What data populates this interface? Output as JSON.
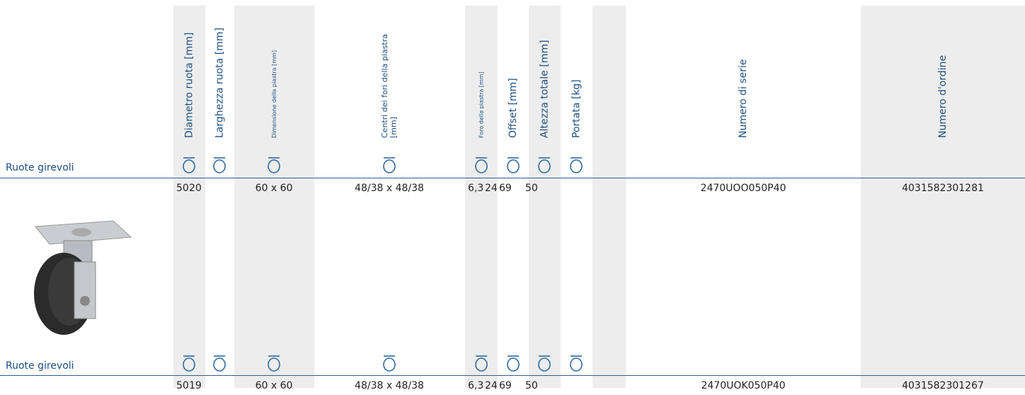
{
  "table": {
    "columns": [
      "Diametro ruota [mm]",
      "Larghezza ruota [mm]",
      "Dimensione della piastra [mm]",
      "Centri dei fori della piastra [mm]",
      "Foro della piastra [mm]",
      "Offset [mm]",
      "Altezza totale [mm]",
      "Portata [kg]",
      "Numero di serie",
      "Numero d'ordine"
    ],
    "rows": [
      {
        "section": "Ruote girevoli",
        "cells": [
          "50",
          "20",
          "60 x 60",
          "48/38 x 48/38",
          "6,3",
          "24",
          "69",
          "50",
          "2470UOO050P40",
          "4031582301281"
        ]
      },
      {
        "section": "Ruote girevoli",
        "cells": [
          "50",
          "19",
          "60 x 60",
          "48/38 x 48/38",
          "6,3",
          "24",
          "69",
          "50",
          "2470UOK050P40",
          "4031582301267"
        ]
      }
    ]
  }
}
